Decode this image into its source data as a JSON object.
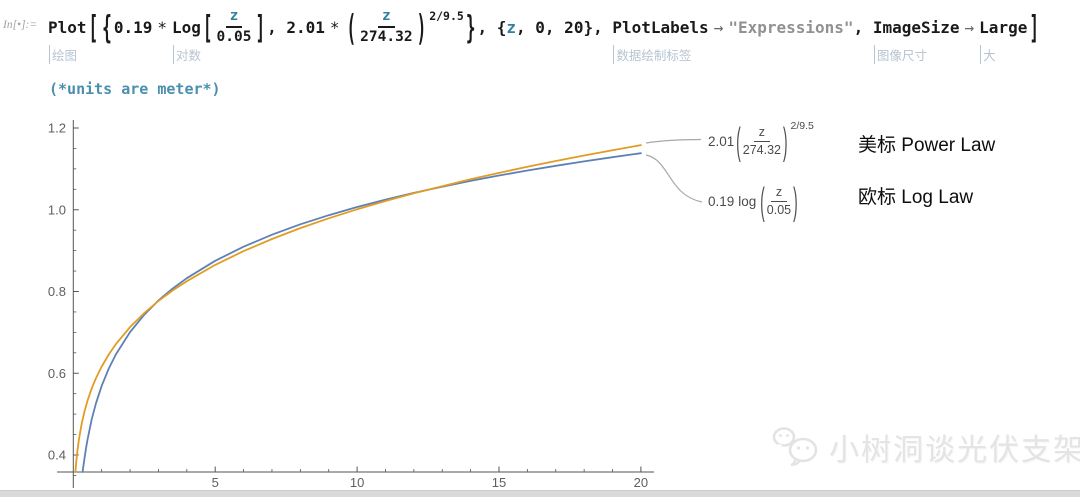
{
  "prompt_label": "In[•]:=",
  "code": {
    "plot_fn": "Plot",
    "open_bracket": "[",
    "open_brace": "{",
    "coef1": "0.19",
    "times1": "*",
    "log_fn": "Log",
    "log_open": "[",
    "frac1_num": "z",
    "frac1_den": "0.05",
    "log_close": "]",
    "comma1": ", ",
    "coef2": "2.01",
    "times2": "*",
    "paren_open": "(",
    "frac2_num": "z",
    "frac2_den": "274.32",
    "paren_close": ")",
    "exponent": "2/9.5",
    "close_brace": "}",
    "comma2": ", ",
    "iter_open": "{",
    "iter_var": "z",
    "iter_rest": ", 0, 20},",
    "plotlabels_opt": "PlotLabels",
    "arrow1": "→",
    "labels_value": "\"Expressions\"",
    "comma3": ", ",
    "imagesize_opt": "ImageSize",
    "arrow2": "→",
    "size_value": "Large",
    "close_bracket": "]"
  },
  "captions": {
    "plot": "绘图",
    "log": "对数",
    "plotlabels": "数据绘制标签",
    "imagesize": "图像尺寸",
    "large": "大"
  },
  "comment": "(*units are meter*)",
  "chart_data": {
    "type": "line",
    "title": "",
    "xlabel": "",
    "ylabel": "",
    "x_range": [
      0,
      20
    ],
    "y_range": [
      0.358,
      1.2
    ],
    "x_ticks": [
      5,
      10,
      15,
      20
    ],
    "x_minor_step": 1,
    "y_ticks": [
      0.4,
      0.6,
      0.8,
      1.0,
      1.2
    ],
    "y_minor_step": 0.05,
    "grid": false,
    "legend_position": "right-callouts",
    "axes_color": "#555555",
    "tick_label_color": "#5f5f5f",
    "callout_color": "#a8a8a8",
    "series": [
      {
        "name": "0.19*Log[z/0.05]",
        "color": "#5e81b5",
        "points": [
          [
            0.327,
            0.3584
          ],
          [
            0.35,
            0.3697
          ],
          [
            0.4,
            0.3951
          ],
          [
            0.45,
            0.4175
          ],
          [
            0.5,
            0.4375
          ],
          [
            0.65,
            0.4873
          ],
          [
            0.8,
            0.5268
          ],
          [
            1,
            0.5692
          ],
          [
            1.25,
            0.6116
          ],
          [
            1.5,
            0.6462
          ],
          [
            2,
            0.7009
          ],
          [
            2.5,
            0.7433
          ],
          [
            3,
            0.7779
          ],
          [
            3.5,
            0.8072
          ],
          [
            4,
            0.8326
          ],
          [
            5,
            0.875
          ],
          [
            6,
            0.9096
          ],
          [
            7,
            0.9389
          ],
          [
            8,
            0.9643
          ],
          [
            9,
            0.9867
          ],
          [
            10,
            1.0067
          ],
          [
            11,
            1.0248
          ],
          [
            12,
            1.0413
          ],
          [
            13,
            1.0565
          ],
          [
            14,
            1.0706
          ],
          [
            15,
            1.0837
          ],
          [
            16,
            1.096
          ],
          [
            17,
            1.1075
          ],
          [
            18,
            1.1184
          ],
          [
            19,
            1.1286
          ],
          [
            20,
            1.1384
          ]
        ]
      },
      {
        "name": "2.01*(z/274.32)^(2/9.5)",
        "color": "#e19c24",
        "points": [
          [
            0.074,
            0.3584
          ],
          [
            0.1,
            0.3797
          ],
          [
            0.12,
            0.3944
          ],
          [
            0.15,
            0.4134
          ],
          [
            0.2,
            0.4392
          ],
          [
            0.3,
            0.4784
          ],
          [
            0.4,
            0.5083
          ],
          [
            0.5,
            0.5328
          ],
          [
            0.65,
            0.563
          ],
          [
            0.8,
            0.5882
          ],
          [
            1,
            0.6165
          ],
          [
            1.25,
            0.646
          ],
          [
            1.5,
            0.6713
          ],
          [
            2,
            0.7132
          ],
          [
            2.5,
            0.7475
          ],
          [
            3,
            0.7768
          ],
          [
            3.5,
            0.8024
          ],
          [
            4,
            0.8253
          ],
          [
            5,
            0.8651
          ],
          [
            6,
            0.8989
          ],
          [
            7,
            0.9284
          ],
          [
            8,
            0.955
          ],
          [
            9,
            0.9791
          ],
          [
            10,
            1.001
          ],
          [
            11,
            1.0213
          ],
          [
            12,
            1.0402
          ],
          [
            13,
            1.0577
          ],
          [
            14,
            1.0744
          ],
          [
            15,
            1.0902
          ],
          [
            16,
            1.1051
          ],
          [
            17,
            1.1192
          ],
          [
            18,
            1.1328
          ],
          [
            19,
            1.1457
          ],
          [
            20,
            1.1582
          ]
        ]
      }
    ]
  },
  "plot_labels": {
    "power": {
      "coef": "2.01",
      "num": "z",
      "den": "274.32",
      "exp": "2/9.5",
      "tag": "美标 Power Law"
    },
    "log": {
      "coef": "0.19",
      "fn": "log",
      "num": "z",
      "den": "0.05",
      "tag": "欧标 Log Law"
    }
  },
  "watermark": {
    "text": "小树洞谈光伏支架"
  }
}
